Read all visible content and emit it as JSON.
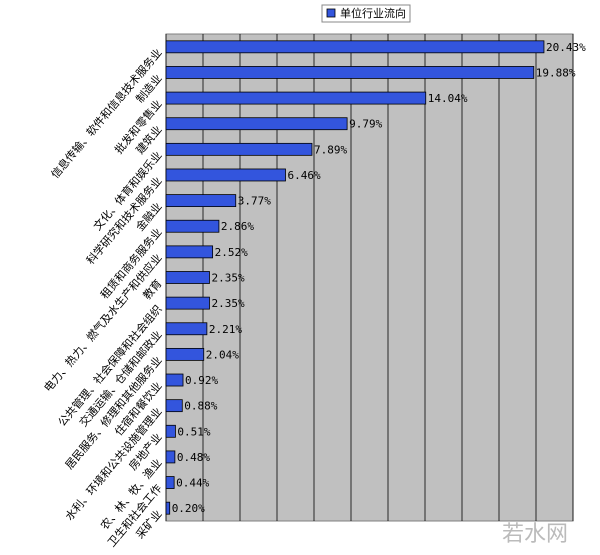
{
  "chart_data": {
    "type": "hbar",
    "watermark": "若水网",
    "categories": [
      "信息传输、软件和信息技术服务业",
      "制造业",
      "批发和零售业",
      "建筑业",
      "文化、体育和娱乐业",
      "科学研究和技术服务业",
      "金融业",
      "租赁和商务服务业",
      "电力、热力、燃气及水生产和供应业",
      "教育",
      "公共管理、社会保障和社会组织",
      "交通运输、仓储和邮政业",
      "居民服务、修理和其他服务业",
      "住宿和餐饮业",
      "水利、环境和公共设施管理业",
      "房地产业",
      "农、林、牧、渔业",
      "卫生和社会工作",
      "采矿业"
    ],
    "series": [
      {
        "name": "单位行业流向",
        "color": "#3355dd",
        "values": [
          20.43,
          19.88,
          14.04,
          9.79,
          7.89,
          6.46,
          3.77,
          2.86,
          2.52,
          2.35,
          2.35,
          2.21,
          2.04,
          0.92,
          0.88,
          0.51,
          0.48,
          0.44,
          0.2
        ],
        "value_labels": [
          "20.43%",
          "19.88%",
          "14.04%",
          "9.79%",
          "7.89%",
          "6.46%",
          "3.77%",
          "2.86%",
          "2.52%",
          "2.35%",
          "2.35%",
          "2.21%",
          "2.04%",
          "0.92%",
          "0.88%",
          "0.51%",
          "0.48%",
          "0.44%",
          "0.20%"
        ]
      }
    ],
    "xlim": [
      0,
      22
    ],
    "xticks": [
      0,
      2,
      4,
      6,
      8,
      10,
      12,
      14,
      16,
      18,
      20,
      22
    ],
    "grid": true
  }
}
